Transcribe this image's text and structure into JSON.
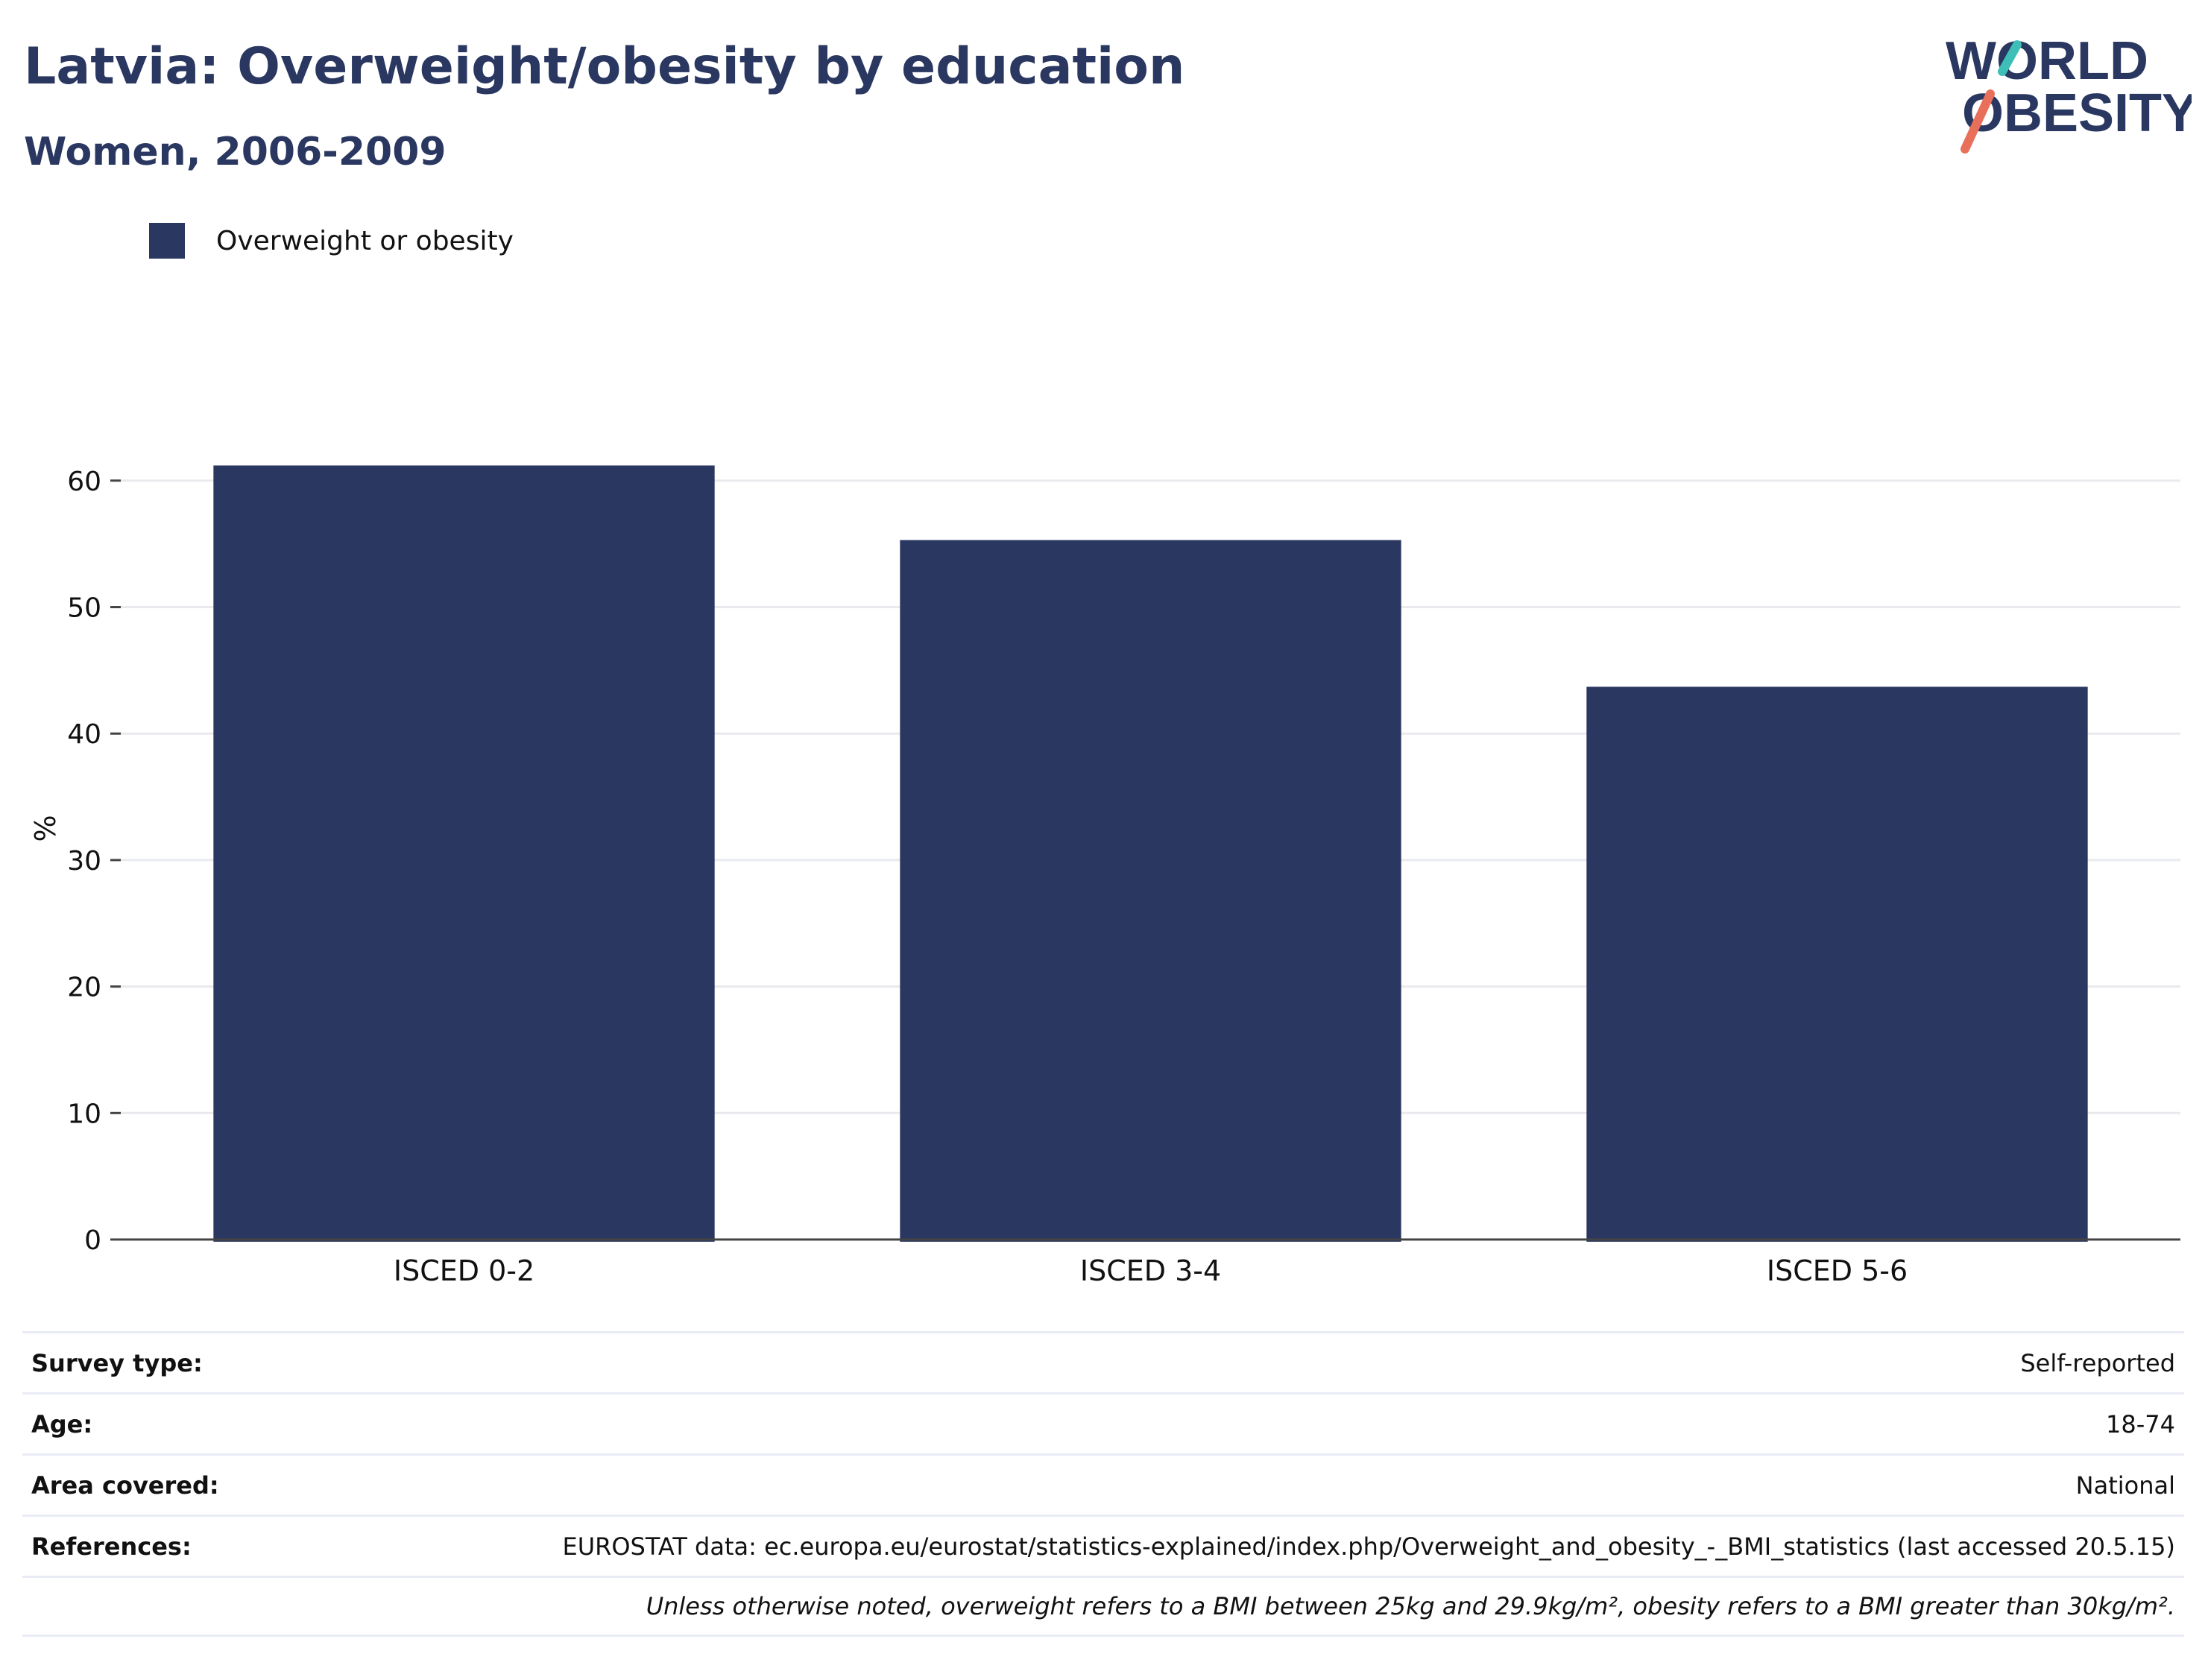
{
  "header": {
    "title": "Latvia: Overweight/obesity by education",
    "subtitle": "Women, 2006-2009"
  },
  "logo": {
    "line1": "WORLD",
    "line2": "OBESITY",
    "accent_colors": [
      "#3dbfb8",
      "#e8705a"
    ]
  },
  "legend": {
    "label": "Overweight or obesity",
    "color": "#2a3761"
  },
  "chart_data": {
    "type": "bar",
    "categories": [
      "ISCED 0-2",
      "ISCED 3-4",
      "ISCED 5-6"
    ],
    "series": [
      {
        "name": "Overweight or obesity",
        "values": [
          61.2,
          55.3,
          43.7
        ]
      }
    ],
    "ylabel": "%",
    "ylim": [
      0,
      65
    ],
    "yticks": [
      0,
      10,
      20,
      30,
      40,
      50,
      60
    ],
    "grid": true,
    "legend_position": "top-left",
    "bar_color": "#2a3761"
  },
  "info": {
    "rows": [
      {
        "key": "Survey type:",
        "value": "Self-reported"
      },
      {
        "key": "Age:",
        "value": "18-74"
      },
      {
        "key": "Area covered:",
        "value": "National"
      },
      {
        "key": "References:",
        "value": "EUROSTAT data: ec.europa.eu/eurostat/statistics-explained/index.php/Overweight_and_obesity_-_BMI_statistics (last accessed 20.5.15)"
      }
    ],
    "note": "Unless otherwise noted, overweight refers to a BMI between 25kg and 29.9kg/m², obesity refers to a BMI greater than 30kg/m²."
  }
}
